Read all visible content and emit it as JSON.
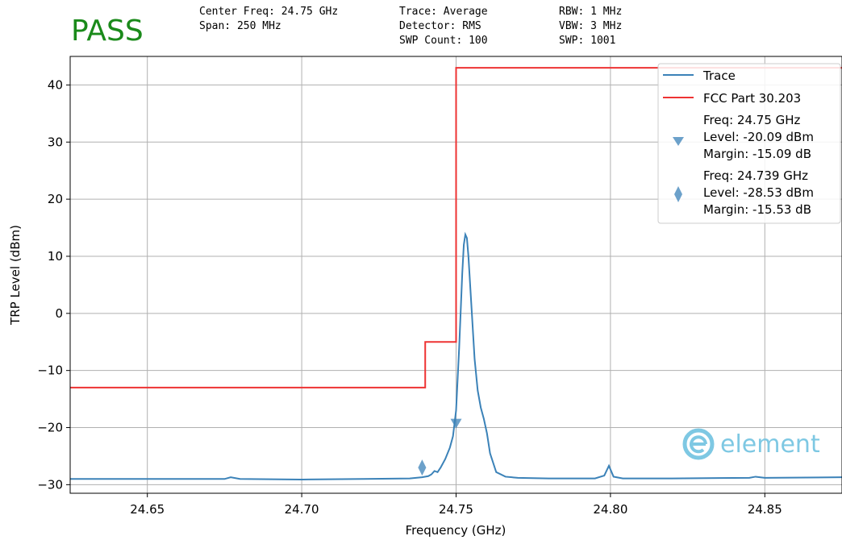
{
  "status": "PASS",
  "colors": {
    "pass": "#1a8a1a",
    "trace": "#3b82b8",
    "limit": "#ee3333",
    "grid": "#b0b0b0",
    "logo": "#7ec8e3"
  },
  "header": {
    "col1": [
      "Center Freq: 24.75 GHz",
      "Span: 250 MHz"
    ],
    "col2": [
      "Trace: Average",
      "Detector: RMS",
      "SWP Count: 100"
    ],
    "col3": [
      "RBW: 1 MHz",
      "VBW: 3 MHz",
      "SWP: 1001"
    ]
  },
  "logo_text": "element",
  "chart_data": {
    "type": "line",
    "xlabel": "Frequency (GHz)",
    "ylabel": "TRP Level (dBm)",
    "xlim": [
      24.625,
      24.875
    ],
    "ylim": [
      -31.5,
      45
    ],
    "xticks": [
      24.65,
      24.7,
      24.75,
      24.8,
      24.85
    ],
    "xtick_labels": [
      "24.65",
      "24.70",
      "24.75",
      "24.80",
      "24.85"
    ],
    "yticks": [
      -30,
      -20,
      -10,
      0,
      10,
      20,
      30,
      40
    ],
    "ytick_labels": [
      "−30",
      "−20",
      "−10",
      "0",
      "10",
      "20",
      "30",
      "40"
    ],
    "grid": true,
    "legend_position": "top-right",
    "series": [
      {
        "name": "Trace",
        "x": [
          24.625,
          24.65,
          24.675,
          24.677,
          24.68,
          24.7,
          24.72,
          24.735,
          24.739,
          24.741,
          24.742,
          24.743,
          24.744,
          24.745,
          24.7465,
          24.748,
          24.749,
          24.75,
          24.751,
          24.752,
          24.7525,
          24.753,
          24.7535,
          24.754,
          24.755,
          24.756,
          24.757,
          24.758,
          24.759,
          24.76,
          24.761,
          24.763,
          24.766,
          24.77,
          24.78,
          24.795,
          24.798,
          24.7995,
          24.801,
          24.804,
          24.82,
          24.845,
          24.847,
          24.85,
          24.875
        ],
        "y": [
          -29.0,
          -29.0,
          -29.0,
          -28.7,
          -29.0,
          -29.1,
          -29.0,
          -28.9,
          -28.7,
          -28.5,
          -28.2,
          -27.6,
          -27.8,
          -27.0,
          -25.5,
          -23.5,
          -21.5,
          -17.0,
          -6.0,
          7.0,
          12.0,
          13.8,
          13.2,
          10.0,
          1.0,
          -8.0,
          -13.5,
          -16.5,
          -18.5,
          -21.0,
          -24.5,
          -27.8,
          -28.6,
          -28.8,
          -28.9,
          -28.9,
          -28.4,
          -26.7,
          -28.6,
          -28.9,
          -28.9,
          -28.8,
          -28.6,
          -28.8,
          -28.7
        ]
      },
      {
        "name": "FCC Part 30.203",
        "x": [
          24.625,
          24.74,
          24.74,
          24.75,
          24.75,
          24.875
        ],
        "y": [
          -13,
          -13,
          -5,
          -5,
          43,
          43
        ]
      }
    ],
    "markers": [
      {
        "shape": "triangle-down",
        "x": 24.75,
        "y": -19.3,
        "legend": [
          "Freq: 24.75 GHz",
          "Level: -20.09 dBm",
          "Margin: -15.09 dB"
        ]
      },
      {
        "shape": "diamond",
        "x": 24.739,
        "y": -27.0,
        "legend": [
          "Freq: 24.739 GHz",
          "Level: -28.53 dBm",
          "Margin: -15.53 dB"
        ]
      }
    ]
  }
}
